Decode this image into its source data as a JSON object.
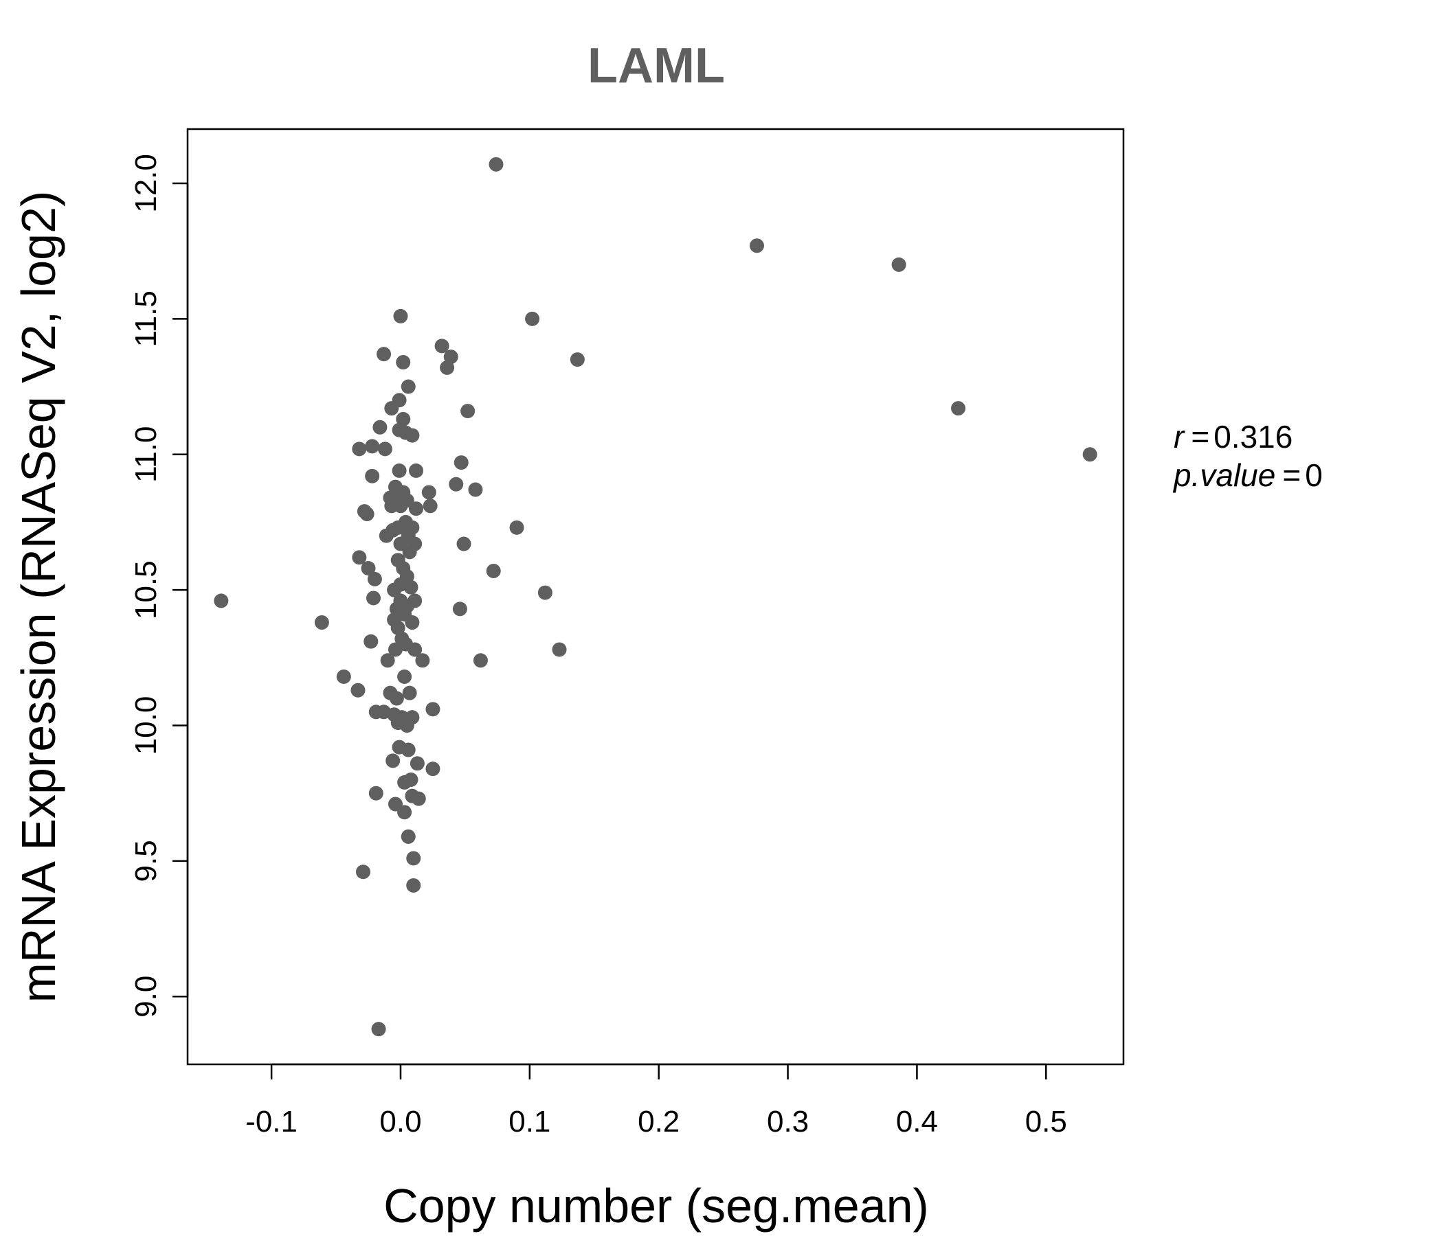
{
  "chart_data": {
    "type": "scatter",
    "title": "LAML",
    "xlabel": "Copy number (seg.mean)",
    "ylabel": "mRNA Expression (RNASeq V2, log2)",
    "xlim": [
      -0.165,
      0.56
    ],
    "ylim": [
      8.75,
      12.2
    ],
    "xticks": [
      -0.1,
      0.0,
      0.1,
      0.2,
      0.3,
      0.4,
      0.5
    ],
    "xtick_labels": [
      "-0.1",
      "0.0",
      "0.1",
      "0.2",
      "0.3",
      "0.4",
      "0.5"
    ],
    "yticks": [
      9.0,
      9.5,
      10.0,
      10.5,
      11.0,
      11.5,
      12.0
    ],
    "ytick_labels": [
      "9.0",
      "9.5",
      "10.0",
      "10.5",
      "11.0",
      "11.5",
      "12.0"
    ],
    "point_color": "#5f5f5f",
    "annotation": {
      "r_label": "r",
      "r_value": "0.316",
      "p_label": "p.value",
      "p_value": "0",
      "placement": "right"
    },
    "points": [
      [
        -0.139,
        10.46
      ],
      [
        -0.061,
        10.38
      ],
      [
        -0.044,
        10.18
      ],
      [
        -0.033,
        10.13
      ],
      [
        -0.032,
        11.02
      ],
      [
        -0.032,
        10.62
      ],
      [
        -0.029,
        9.46
      ],
      [
        -0.028,
        10.79
      ],
      [
        -0.026,
        10.78
      ],
      [
        -0.025,
        10.58
      ],
      [
        -0.023,
        10.31
      ],
      [
        -0.022,
        11.03
      ],
      [
        -0.022,
        10.92
      ],
      [
        -0.021,
        10.47
      ],
      [
        -0.02,
        10.54
      ],
      [
        -0.019,
        10.05
      ],
      [
        -0.019,
        9.75
      ],
      [
        -0.017,
        8.88
      ],
      [
        -0.016,
        11.1
      ],
      [
        -0.013,
        11.37
      ],
      [
        -0.013,
        10.05
      ],
      [
        -0.012,
        11.02
      ],
      [
        -0.011,
        10.7
      ],
      [
        -0.01,
        10.24
      ],
      [
        -0.008,
        10.84
      ],
      [
        -0.008,
        10.12
      ],
      [
        -0.007,
        10.81
      ],
      [
        -0.007,
        11.17
      ],
      [
        -0.006,
        10.72
      ],
      [
        -0.006,
        9.87
      ],
      [
        -0.005,
        10.5
      ],
      [
        -0.005,
        10.39
      ],
      [
        -0.005,
        10.04
      ],
      [
        -0.004,
        10.88
      ],
      [
        -0.004,
        10.28
      ],
      [
        -0.004,
        9.71
      ],
      [
        -0.003,
        10.85
      ],
      [
        -0.003,
        10.43
      ],
      [
        -0.003,
        10.1
      ],
      [
        -0.002,
        10.73
      ],
      [
        -0.002,
        10.61
      ],
      [
        -0.002,
        10.36
      ],
      [
        -0.002,
        10.01
      ],
      [
        -0.001,
        11.2
      ],
      [
        -0.001,
        11.09
      ],
      [
        -0.001,
        10.94
      ],
      [
        -0.001,
        9.92
      ],
      [
        0.0,
        11.51
      ],
      [
        0.0,
        10.81
      ],
      [
        0.0,
        10.67
      ],
      [
        0.0,
        10.52
      ],
      [
        0.0,
        10.46
      ],
      [
        0.001,
        10.32
      ],
      [
        0.001,
        10.03
      ],
      [
        0.002,
        11.34
      ],
      [
        0.002,
        11.13
      ],
      [
        0.002,
        10.86
      ],
      [
        0.002,
        10.58
      ],
      [
        0.003,
        10.41
      ],
      [
        0.003,
        10.18
      ],
      [
        0.003,
        9.79
      ],
      [
        0.003,
        9.68
      ],
      [
        0.004,
        11.08
      ],
      [
        0.004,
        10.75
      ],
      [
        0.004,
        10.3
      ],
      [
        0.005,
        10.83
      ],
      [
        0.005,
        10.55
      ],
      [
        0.005,
        10.44
      ],
      [
        0.005,
        10.0
      ],
      [
        0.006,
        11.25
      ],
      [
        0.006,
        10.7
      ],
      [
        0.006,
        9.91
      ],
      [
        0.006,
        9.59
      ],
      [
        0.007,
        10.64
      ],
      [
        0.007,
        10.12
      ],
      [
        0.008,
        10.51
      ],
      [
        0.008,
        9.8
      ],
      [
        0.009,
        11.07
      ],
      [
        0.009,
        10.73
      ],
      [
        0.009,
        10.38
      ],
      [
        0.009,
        10.03
      ],
      [
        0.009,
        9.74
      ],
      [
        0.01,
        9.51
      ],
      [
        0.01,
        9.41
      ],
      [
        0.011,
        10.67
      ],
      [
        0.011,
        10.46
      ],
      [
        0.011,
        10.28
      ],
      [
        0.012,
        10.94
      ],
      [
        0.012,
        10.8
      ],
      [
        0.013,
        9.86
      ],
      [
        0.014,
        9.73
      ],
      [
        0.017,
        10.24
      ],
      [
        0.022,
        10.86
      ],
      [
        0.023,
        10.81
      ],
      [
        0.025,
        10.06
      ],
      [
        0.025,
        9.84
      ],
      [
        0.032,
        11.4
      ],
      [
        0.036,
        11.32
      ],
      [
        0.039,
        11.36
      ],
      [
        0.043,
        10.89
      ],
      [
        0.046,
        10.43
      ],
      [
        0.047,
        10.97
      ],
      [
        0.049,
        10.67
      ],
      [
        0.052,
        11.16
      ],
      [
        0.058,
        10.87
      ],
      [
        0.062,
        10.24
      ],
      [
        0.072,
        10.57
      ],
      [
        0.074,
        12.07
      ],
      [
        0.09,
        10.73
      ],
      [
        0.102,
        11.5
      ],
      [
        0.112,
        10.49
      ],
      [
        0.123,
        10.28
      ],
      [
        0.137,
        11.35
      ],
      [
        0.276,
        11.77
      ],
      [
        0.386,
        11.7
      ],
      [
        0.432,
        11.17
      ],
      [
        0.534,
        11.0
      ]
    ]
  }
}
